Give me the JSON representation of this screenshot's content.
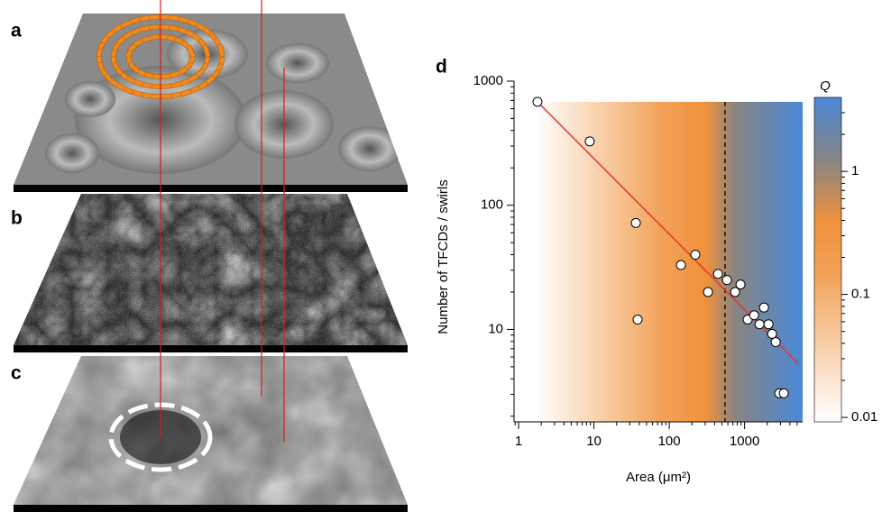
{
  "panel_labels": [
    "a",
    "b",
    "c"
  ],
  "chart_data": {
    "type": "scatter",
    "panel_label": "d",
    "xlabel": "Area (μm²)",
    "ylabel": "Number of TFCDs / swirls",
    "xlog": true,
    "ylog": true,
    "xlim": [
      0.87,
      5900
    ],
    "ylim": [
      1.8,
      1000
    ],
    "xticks": [
      1,
      10,
      100,
      1000
    ],
    "yticks": [
      10,
      100,
      1000
    ],
    "series": [
      {
        "color": "#ffffff",
        "x": [
          1.78,
          8.8,
          36,
          38,
          143,
          222,
          327,
          443,
          584,
          749,
          883,
          1100,
          1340,
          1580,
          1810,
          2080,
          2320,
          2590,
          2890,
          3320
        ],
        "values": [
          681,
          327,
          72,
          12,
          33,
          40,
          20,
          28,
          25,
          20,
          23,
          12,
          13,
          11,
          15,
          11,
          9.2,
          7.9,
          3.06,
          3.06
        ]
      }
    ],
    "fit": {
      "color": "#e8352f",
      "x": [
        1.78,
        5160
      ],
      "values": [
        681,
        5.3
      ]
    },
    "threshold_x": 550,
    "colorbar": {
      "label": "Q",
      "lim": [
        0.0092,
        4
      ],
      "ticks": [
        0.01,
        0.1,
        1
      ]
    }
  }
}
